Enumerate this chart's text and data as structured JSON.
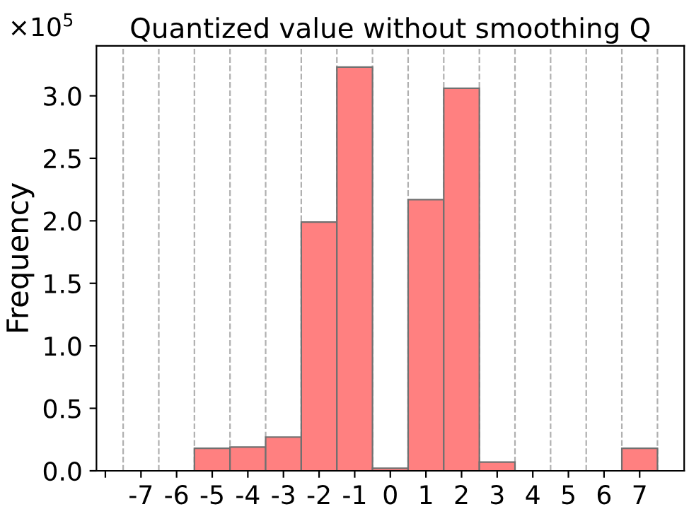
{
  "chart_data": {
    "type": "histogram",
    "title": "Quantized value without smoothing Q",
    "ylabel": "Frequency",
    "bins": [
      -7.5,
      -6.5,
      -5.5,
      -4.5,
      -3.5,
      -2.5,
      -1.5,
      -0.5,
      0.5,
      1.5,
      2.5,
      3.5,
      4.5,
      5.5,
      6.5,
      7.5
    ],
    "values": [
      0,
      0,
      0.18,
      0.19,
      0.27,
      1.99,
      3.23,
      0.02,
      2.17,
      3.06,
      0.07,
      0,
      0,
      0,
      0.18
    ],
    "color": "#ff8080",
    "xlim": [
      -8.25,
      8.25
    ],
    "xticks": [
      {
        "value": -8,
        "label": null
      },
      -7,
      -6,
      -5,
      -4,
      -3,
      -2,
      -1,
      0,
      1,
      2,
      3,
      4,
      5,
      6,
      7
    ],
    "ylim": [
      0,
      3.4
    ],
    "yticks": [
      {
        "value": 0,
        "label": "0.0"
      },
      0.5,
      {
        "value": 1,
        "label": "1.0"
      },
      1.5,
      {
        "value": 2,
        "label": "2.0"
      },
      2.5,
      {
        "value": 3,
        "label": "3.0"
      }
    ],
    "annotations": [
      "×10$^{5}$"
    ],
    "ref_lines": [
      {
        "axis": "x",
        "value": -7.5,
        "color": "#b0b0b0",
        "line_style": "dashed"
      },
      {
        "axis": "x",
        "value": -6.5,
        "color": "#b0b0b0",
        "line_style": "dashed"
      },
      {
        "axis": "x",
        "value": -5.5,
        "color": "#b0b0b0",
        "line_style": "dashed"
      },
      {
        "axis": "x",
        "value": -4.5,
        "color": "#b0b0b0",
        "line_style": "dashed"
      },
      {
        "axis": "x",
        "value": -3.5,
        "color": "#b0b0b0",
        "line_style": "dashed"
      },
      {
        "axis": "x",
        "value": -2.5,
        "color": "#b0b0b0",
        "line_style": "dashed"
      },
      {
        "axis": "x",
        "value": -1.5,
        "color": "#b0b0b0",
        "line_style": "dashed"
      },
      {
        "axis": "x",
        "value": -0.5,
        "color": "#b0b0b0",
        "line_style": "dashed"
      },
      {
        "axis": "x",
        "value": 0.5,
        "color": "#b0b0b0",
        "line_style": "dashed"
      },
      {
        "axis": "x",
        "value": 1.5,
        "color": "#b0b0b0",
        "line_style": "dashed"
      },
      {
        "axis": "x",
        "value": 2.5,
        "color": "#b0b0b0",
        "line_style": "dashed"
      },
      {
        "axis": "x",
        "value": 3.5,
        "color": "#b0b0b0",
        "line_style": "dashed"
      },
      {
        "axis": "x",
        "value": 4.5,
        "color": "#b0b0b0",
        "line_style": "dashed"
      },
      {
        "axis": "x",
        "value": 5.5,
        "color": "#b0b0b0",
        "line_style": "dashed"
      },
      {
        "axis": "x",
        "value": 6.5,
        "color": "#b0b0b0",
        "line_style": "dashed"
      },
      {
        "axis": "x",
        "value": 7.5,
        "color": "#b0b0b0",
        "line_style": "dashed"
      }
    ]
  }
}
